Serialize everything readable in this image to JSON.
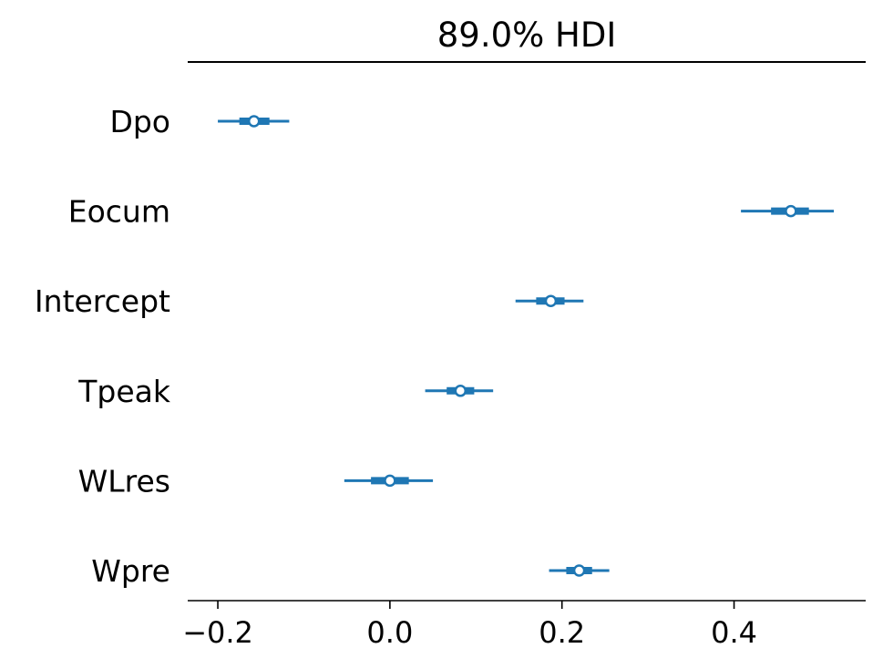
{
  "chart_data": {
    "type": "forest",
    "title": "89.0% HDI",
    "xlabel": "",
    "ylabel": "",
    "xlim": [
      -0.235,
      0.553
    ],
    "xticks": [
      -0.2,
      0.0,
      0.2,
      0.4
    ],
    "xtick_labels": [
      "−0.2",
      "0.0",
      "0.2",
      "0.4"
    ],
    "grid": false,
    "color": "#1f77b4",
    "variables": [
      {
        "name": "Dpo",
        "mean": -0.158,
        "hdi_low": -0.2,
        "hdi_high": -0.117,
        "iqr_low": -0.175,
        "iqr_high": -0.14
      },
      {
        "name": "Eocum",
        "mean": 0.466,
        "hdi_low": 0.408,
        "hdi_high": 0.516,
        "iqr_low": 0.443,
        "iqr_high": 0.487
      },
      {
        "name": "Intercept",
        "mean": 0.187,
        "hdi_low": 0.146,
        "hdi_high": 0.225,
        "iqr_low": 0.17,
        "iqr_high": 0.203
      },
      {
        "name": "Tpeak",
        "mean": 0.082,
        "hdi_low": 0.041,
        "hdi_high": 0.12,
        "iqr_low": 0.066,
        "iqr_high": 0.098
      },
      {
        "name": "WLres",
        "mean": 0.0,
        "hdi_low": -0.053,
        "hdi_high": 0.05,
        "iqr_low": -0.022,
        "iqr_high": 0.022
      },
      {
        "name": "Wpre",
        "mean": 0.22,
        "hdi_low": 0.185,
        "hdi_high": 0.255,
        "iqr_low": 0.205,
        "iqr_high": 0.235
      }
    ]
  }
}
